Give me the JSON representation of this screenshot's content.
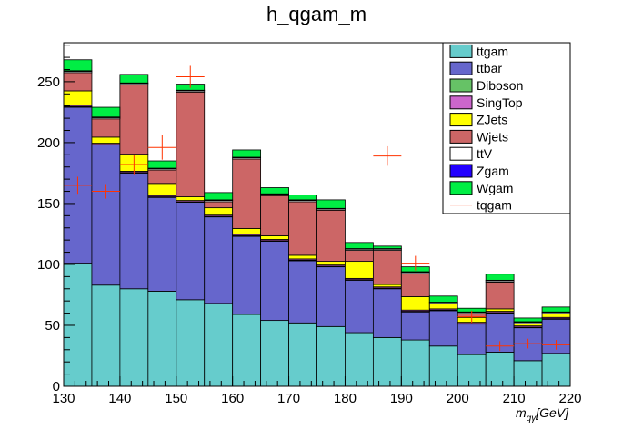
{
  "chart_data": {
    "type": "bar",
    "stacked": true,
    "title": "h_qgam_m",
    "xlabel": "m_{qγ}[GeV]",
    "xlabel_parts": {
      "m": "m",
      "sub": "qγ",
      "unit": "[GeV]"
    },
    "ylabel": "",
    "xlim": [
      130,
      220
    ],
    "ylim": [
      0,
      282
    ],
    "x_ticks": [
      130,
      140,
      150,
      160,
      170,
      180,
      190,
      200,
      210,
      220
    ],
    "x_tick_labels": [
      "130",
      "140",
      "150",
      "160",
      "170",
      "180",
      "190",
      "200",
      "210",
      "220"
    ],
    "y_ticks": [
      0,
      50,
      100,
      150,
      200,
      250
    ],
    "y_tick_labels": [
      "0",
      "50",
      "100",
      "150",
      "200",
      "250"
    ],
    "bin_edges": [
      130,
      135,
      140,
      145,
      150,
      155,
      160,
      165,
      170,
      175,
      180,
      185,
      190,
      195,
      200,
      205,
      210,
      215,
      220
    ],
    "series": [
      {
        "name": "ttgam",
        "color": "#66cccc",
        "values": [
          101,
          83,
          80,
          78,
          71,
          68,
          59,
          54,
          52,
          49,
          44,
          40,
          38,
          33,
          26,
          28,
          21,
          27
        ]
      },
      {
        "name": "ttbar",
        "color": "#6666cc",
        "values": [
          128,
          115,
          95,
          77,
          80,
          71,
          64,
          65,
          51,
          49,
          43,
          40,
          23,
          29,
          25,
          32,
          27,
          28
        ]
      },
      {
        "name": "Diboson",
        "color": "#66c266",
        "values": [
          0.5,
          0.5,
          0.5,
          0.5,
          0.5,
          0.5,
          0.5,
          0.5,
          0.5,
          0.5,
          0.5,
          0.5,
          0.5,
          0.5,
          0.5,
          0.5,
          0.5,
          0.5
        ]
      },
      {
        "name": "SingTop",
        "color": "#cc66cc",
        "values": [
          1,
          1,
          1,
          1,
          1,
          1,
          1,
          1,
          1,
          1,
          1,
          1,
          1,
          1,
          1,
          1,
          1,
          1
        ]
      },
      {
        "name": "ZJets",
        "color": "#ffff00",
        "values": [
          12,
          5,
          14,
          10,
          3,
          6,
          5,
          3,
          3,
          3,
          14,
          2,
          11,
          4,
          4,
          2,
          2,
          3
        ]
      },
      {
        "name": "Wjets",
        "color": "#cc6666",
        "values": [
          15,
          15,
          57,
          11,
          86,
          5,
          57,
          33,
          44,
          42,
          9,
          28,
          19,
          0,
          3,
          22,
          0,
          0
        ]
      },
      {
        "name": "ttV",
        "color": "#ffffff",
        "values": [
          1,
          1,
          1,
          1,
          1,
          1,
          1,
          1,
          1,
          1,
          1,
          1,
          1,
          1,
          1,
          1,
          1,
          1
        ]
      },
      {
        "name": "Zgam",
        "color": "#2200ff",
        "values": [
          0.5,
          0.5,
          0.5,
          0.5,
          0.5,
          0.5,
          0.5,
          0.5,
          0.5,
          0.5,
          0.5,
          0.5,
          0.5,
          0.5,
          0.5,
          0.5,
          0.5,
          0.5
        ]
      },
      {
        "name": "Wgam",
        "color": "#00ee44",
        "values": [
          9,
          8,
          7,
          6,
          5,
          6,
          6,
          5,
          4,
          7,
          5,
          2,
          4,
          5,
          3,
          5,
          3,
          4
        ]
      }
    ],
    "overlay": {
      "name": "tqgam",
      "type": "points_with_errors",
      "color": "#ff3300",
      "x": [
        132.5,
        137.5,
        142.5,
        147.5,
        152.5,
        187.5,
        192.5,
        202.5,
        207.5,
        212.5,
        217.5
      ],
      "y": [
        165,
        160,
        182,
        196,
        254,
        189,
        101,
        57,
        33,
        35,
        34
      ],
      "y_err": [
        7,
        6,
        8,
        10,
        9,
        8,
        6,
        5,
        4,
        4,
        4
      ]
    },
    "legend_position": "top-right",
    "grid": false
  }
}
